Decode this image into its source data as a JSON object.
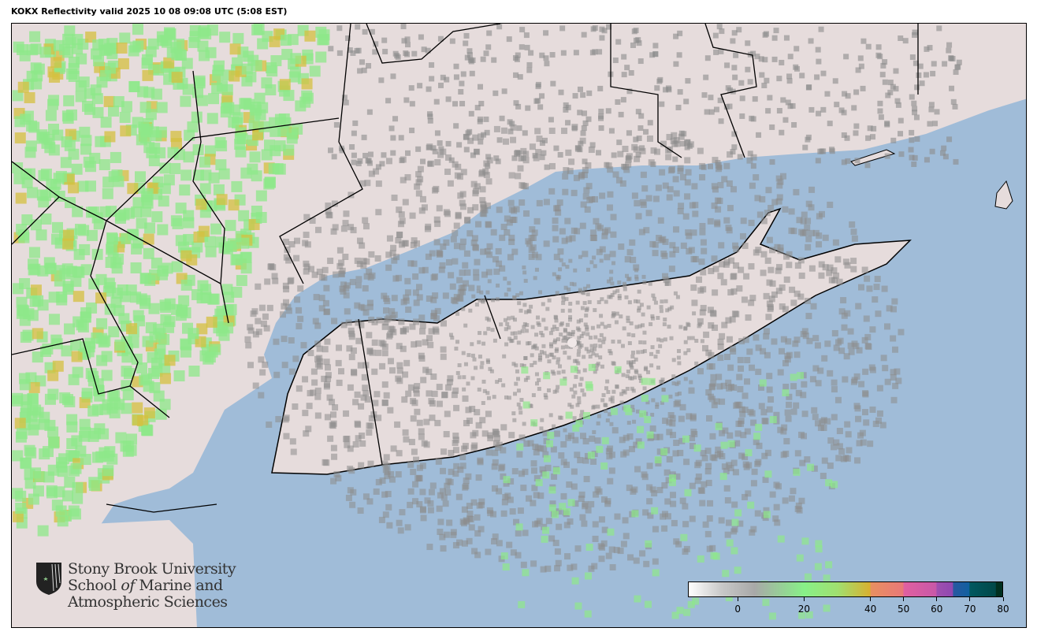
{
  "title": "KOKX Reflectivity valid 2025 10 08 09:08 UTC (5:08 EST)",
  "map": {
    "colors": {
      "water": "#a0bcd8",
      "land": "#e6dcdc",
      "radar_green": "#8ee88a",
      "radar_yellow": "#d4c040",
      "radar_gray": "#8c8c8c",
      "borders": "#000000"
    }
  },
  "logo": {
    "line1": "Stony Brook University",
    "line2a": "School ",
    "line2b": "of",
    "line2c": " Marine and",
    "line3": "Atmospheric Sciences"
  },
  "colorbar": {
    "range": [
      -15,
      80
    ],
    "ticks": [
      0,
      20,
      40,
      50,
      60,
      70,
      80
    ],
    "tick_labels": [
      "0",
      "20",
      "40",
      "50",
      "60",
      "70",
      "80"
    ],
    "stops": [
      {
        "v": -15,
        "c": "#ffffff"
      },
      {
        "v": -5,
        "c": "#c8c8c8"
      },
      {
        "v": 5,
        "c": "#a8a8a8"
      },
      {
        "v": 20,
        "c": "#88f088"
      },
      {
        "v": 30,
        "c": "#a0e070"
      },
      {
        "v": 40,
        "c": "#d8b030"
      },
      {
        "v": 40.1,
        "c": "#e89060"
      },
      {
        "v": 50,
        "c": "#e87878"
      },
      {
        "v": 50.1,
        "c": "#e060a0"
      },
      {
        "v": 60,
        "c": "#c858a8"
      },
      {
        "v": 60.1,
        "c": "#a050b0"
      },
      {
        "v": 65,
        "c": "#9048b0"
      },
      {
        "v": 65.1,
        "c": "#2858a0"
      },
      {
        "v": 70,
        "c": "#1060a0"
      },
      {
        "v": 70.1,
        "c": "#005860"
      },
      {
        "v": 78,
        "c": "#004848"
      },
      {
        "v": 78.1,
        "c": "#003020"
      },
      {
        "v": 80,
        "c": "#003020"
      }
    ]
  }
}
